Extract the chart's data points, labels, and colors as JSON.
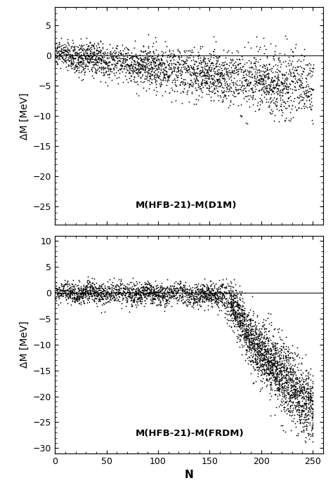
{
  "upper_panel": {
    "label": "M(HFB-21)-M(D1M)",
    "ylim": [
      -28,
      8
    ],
    "yticks": [
      5,
      0,
      -5,
      -10,
      -15,
      -20,
      -25
    ],
    "ylabel": "ΔM [MeV]"
  },
  "lower_panel": {
    "label": "M(HFB-21)-M(FRDM)",
    "ylim": [
      -31,
      11
    ],
    "yticks": [
      10,
      5,
      0,
      -5,
      -10,
      -15,
      -20,
      -25,
      -30
    ],
    "ylabel": "ΔM [MeV]"
  },
  "xlim": [
    0,
    260
  ],
  "xticks": [
    0,
    50,
    100,
    150,
    200,
    250
  ],
  "xlabel": "N",
  "color": "black",
  "background_color": "#ffffff",
  "seed": 42
}
